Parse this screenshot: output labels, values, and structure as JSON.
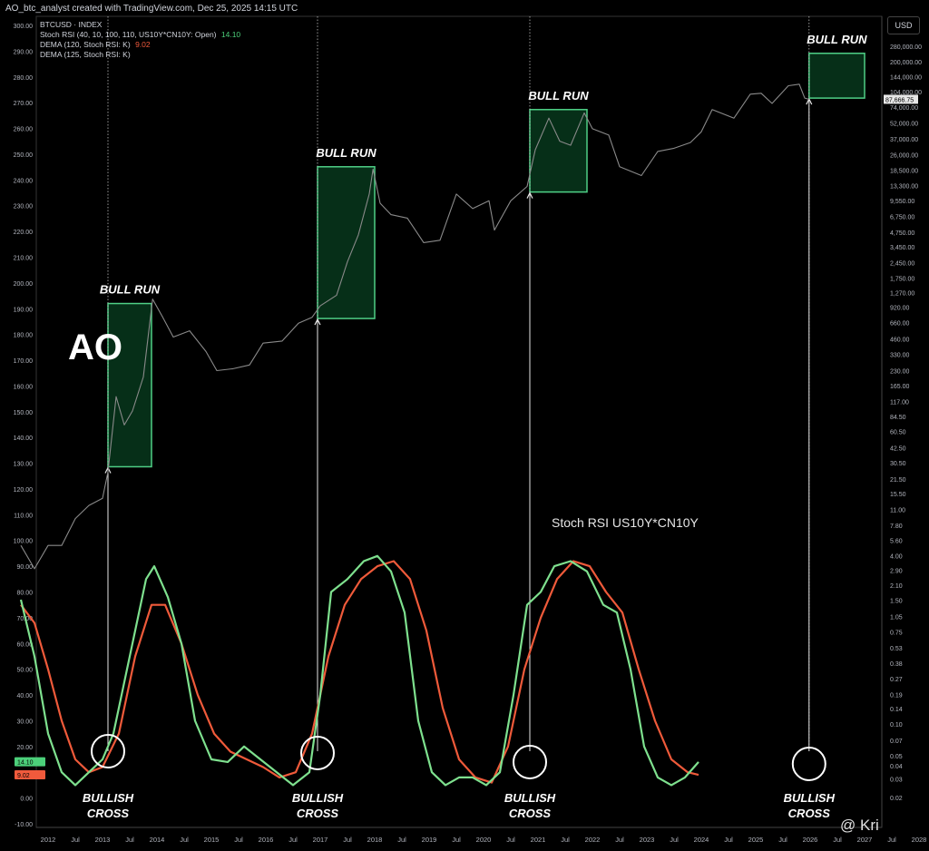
{
  "header": {
    "attribution": "AO_btc_analyst created with TradingView.com, Dec 25, 2025 14:15 UTC"
  },
  "legend": {
    "symbol": "BTCUSD · INDEX",
    "stoch": "Stoch RSI (40, 10, 100, 110, US10Y*CN10Y: Open)",
    "stoch_value": "14.10",
    "dema120": "DEMA (120, Stoch RSI: K)",
    "dema120_value": "9.02",
    "dema125": "DEMA (125, Stoch RSI: K)"
  },
  "currency_button": "USD",
  "watermark": "@ Kri",
  "colors": {
    "background": "#000000",
    "price": "#8a8a8a",
    "stoch_k": "#7ee08e",
    "dema": "#ef5a3a",
    "box_fill": "#062f18",
    "box_stroke": "#4fcf86",
    "vline": "#bdbdbd"
  },
  "chart_data": {
    "type": "line",
    "title": "",
    "annotations": {
      "big_label": "AO",
      "bull_run_label": "BULL RUN",
      "cross_label_1": "BULLISH",
      "cross_label_2": "CROSS",
      "indicator_label": "Stoch RSI US10Y*CN10Y"
    },
    "left_axis_ticks": [
      "300.00",
      "290.00",
      "280.00",
      "270.00",
      "260.00",
      "250.00",
      "240.00",
      "230.00",
      "220.00",
      "210.00",
      "200.00",
      "190.00",
      "180.00",
      "170.00",
      "160.00",
      "150.00",
      "140.00",
      "130.00",
      "120.00",
      "110.00",
      "100.00",
      "90.00",
      "80.00",
      "70.00",
      "60.00",
      "50.00",
      "40.00",
      "30.00",
      "20.00",
      "10.00",
      "0.00",
      "-10.00"
    ],
    "left_axis_range": [
      -10,
      300
    ],
    "right_axis_ticks": [
      "280,000.00",
      "200,000.00",
      "144,000.00",
      "104,000.00",
      "74,000.00",
      "52,000.00",
      "37,000.00",
      "26,000.00",
      "18,500.00",
      "13,300.00",
      "9,550.00",
      "6,750.00",
      "4,750.00",
      "3,450.00",
      "2,450.00",
      "1,750.00",
      "1,270.00",
      "920.00",
      "660.00",
      "460.00",
      "330.00",
      "230.00",
      "165.00",
      "117.00",
      "84.50",
      "60.50",
      "42.50",
      "30.50",
      "21.50",
      "15.50",
      "11.00",
      "7.80",
      "5.60",
      "4.00",
      "2.90",
      "2.10",
      "1.50",
      "1.05",
      "0.75",
      "0.53",
      "0.38",
      "0.27",
      "0.19",
      "0.14",
      "0.10",
      "0.07",
      "0.05",
      "0.04",
      "0.03",
      "0.02"
    ],
    "price_axis_scale": "log",
    "price_label": "87,666.75",
    "x_axis_ticks": [
      "2012",
      "Jul",
      "2013",
      "Jul",
      "2014",
      "Jul",
      "2015",
      "Jul",
      "2016",
      "Jul",
      "2017",
      "Jul",
      "2018",
      "Jul",
      "2019",
      "Jul",
      "2020",
      "Jul",
      "2021",
      "Jul",
      "2022",
      "Jul",
      "2023",
      "Jul",
      "2024",
      "Jul",
      "2025",
      "Jul",
      "2026",
      "Jul",
      "2027",
      "Jul",
      "2028"
    ],
    "current_value_tags": {
      "stoch_k": "14.10",
      "dema": "9.02"
    },
    "series": [
      {
        "name": "BTCUSD",
        "scale": "right_log",
        "points": [
          [
            2011.5,
            5
          ],
          [
            2011.75,
            3
          ],
          [
            2012.0,
            5
          ],
          [
            2012.25,
            5
          ],
          [
            2012.5,
            9
          ],
          [
            2012.75,
            12
          ],
          [
            2013.0,
            14
          ],
          [
            2013.1,
            25
          ],
          [
            2013.25,
            130
          ],
          [
            2013.4,
            70
          ],
          [
            2013.55,
            95
          ],
          [
            2013.75,
            200
          ],
          [
            2013.92,
            1100
          ],
          [
            2014.1,
            750
          ],
          [
            2014.3,
            480
          ],
          [
            2014.6,
            550
          ],
          [
            2014.9,
            350
          ],
          [
            2015.1,
            230
          ],
          [
            2015.4,
            240
          ],
          [
            2015.7,
            260
          ],
          [
            2015.95,
            420
          ],
          [
            2016.3,
            440
          ],
          [
            2016.6,
            650
          ],
          [
            2016.85,
            740
          ],
          [
            2017.0,
            950
          ],
          [
            2017.3,
            1200
          ],
          [
            2017.5,
            2500
          ],
          [
            2017.7,
            4500
          ],
          [
            2017.9,
            11000
          ],
          [
            2017.97,
            19000
          ],
          [
            2018.1,
            9000
          ],
          [
            2018.3,
            7000
          ],
          [
            2018.6,
            6500
          ],
          [
            2018.9,
            3800
          ],
          [
            2019.2,
            4000
          ],
          [
            2019.5,
            11000
          ],
          [
            2019.8,
            8000
          ],
          [
            2020.1,
            9500
          ],
          [
            2020.2,
            5000
          ],
          [
            2020.5,
            9500
          ],
          [
            2020.8,
            13000
          ],
          [
            2020.95,
            29000
          ],
          [
            2021.2,
            58000
          ],
          [
            2021.4,
            35000
          ],
          [
            2021.6,
            32000
          ],
          [
            2021.85,
            65000
          ],
          [
            2022.0,
            46000
          ],
          [
            2022.3,
            40000
          ],
          [
            2022.5,
            20000
          ],
          [
            2022.9,
            16500
          ],
          [
            2023.2,
            28000
          ],
          [
            2023.5,
            30000
          ],
          [
            2023.8,
            34000
          ],
          [
            2024.0,
            43000
          ],
          [
            2024.2,
            70000
          ],
          [
            2024.6,
            58000
          ],
          [
            2024.9,
            98000
          ],
          [
            2025.1,
            100000
          ],
          [
            2025.3,
            80000
          ],
          [
            2025.6,
            118000
          ],
          [
            2025.8,
            122000
          ],
          [
            2025.9,
            90000
          ],
          [
            2025.98,
            87666
          ]
        ]
      },
      {
        "name": "Stoch RSI",
        "scale": "left",
        "points": [
          [
            2011.5,
            77
          ],
          [
            2011.75,
            55
          ],
          [
            2012.0,
            25
          ],
          [
            2012.25,
            10
          ],
          [
            2012.5,
            5
          ],
          [
            2012.75,
            10
          ],
          [
            2013.0,
            15
          ],
          [
            2013.2,
            25
          ],
          [
            2013.5,
            55
          ],
          [
            2013.8,
            85
          ],
          [
            2013.95,
            90
          ],
          [
            2014.2,
            78
          ],
          [
            2014.45,
            60
          ],
          [
            2014.7,
            30
          ],
          [
            2015.0,
            15
          ],
          [
            2015.3,
            14
          ],
          [
            2015.6,
            20
          ],
          [
            2015.9,
            15
          ],
          [
            2016.2,
            10
          ],
          [
            2016.5,
            5
          ],
          [
            2016.8,
            10
          ],
          [
            2017.0,
            40
          ],
          [
            2017.2,
            80
          ],
          [
            2017.5,
            85
          ],
          [
            2017.8,
            92
          ],
          [
            2018.05,
            94
          ],
          [
            2018.3,
            88
          ],
          [
            2018.55,
            72
          ],
          [
            2018.8,
            30
          ],
          [
            2019.05,
            10
          ],
          [
            2019.3,
            5
          ],
          [
            2019.55,
            8
          ],
          [
            2019.8,
            8
          ],
          [
            2020.05,
            5
          ],
          [
            2020.3,
            10
          ],
          [
            2020.55,
            40
          ],
          [
            2020.8,
            75
          ],
          [
            2021.05,
            80
          ],
          [
            2021.3,
            90
          ],
          [
            2021.6,
            92
          ],
          [
            2021.9,
            88
          ],
          [
            2022.2,
            75
          ],
          [
            2022.45,
            72
          ],
          [
            2022.7,
            50
          ],
          [
            2022.95,
            20
          ],
          [
            2023.2,
            8
          ],
          [
            2023.45,
            5
          ],
          [
            2023.7,
            8
          ],
          [
            2023.95,
            14
          ]
        ]
      },
      {
        "name": "DEMA",
        "scale": "left",
        "points": [
          [
            2011.5,
            75
          ],
          [
            2011.75,
            68
          ],
          [
            2012.0,
            50
          ],
          [
            2012.25,
            30
          ],
          [
            2012.5,
            15
          ],
          [
            2012.75,
            10
          ],
          [
            2013.0,
            12
          ],
          [
            2013.3,
            25
          ],
          [
            2013.6,
            55
          ],
          [
            2013.9,
            75
          ],
          [
            2014.15,
            75
          ],
          [
            2014.45,
            60
          ],
          [
            2014.75,
            40
          ],
          [
            2015.05,
            25
          ],
          [
            2015.35,
            18
          ],
          [
            2015.65,
            15
          ],
          [
            2015.95,
            12
          ],
          [
            2016.25,
            8
          ],
          [
            2016.55,
            10
          ],
          [
            2016.85,
            25
          ],
          [
            2017.15,
            55
          ],
          [
            2017.45,
            75
          ],
          [
            2017.75,
            85
          ],
          [
            2018.05,
            90
          ],
          [
            2018.35,
            92
          ],
          [
            2018.65,
            85
          ],
          [
            2018.95,
            65
          ],
          [
            2019.25,
            35
          ],
          [
            2019.55,
            15
          ],
          [
            2019.85,
            8
          ],
          [
            2020.15,
            6
          ],
          [
            2020.45,
            20
          ],
          [
            2020.75,
            50
          ],
          [
            2021.05,
            70
          ],
          [
            2021.35,
            85
          ],
          [
            2021.65,
            92
          ],
          [
            2021.95,
            90
          ],
          [
            2022.25,
            80
          ],
          [
            2022.55,
            72
          ],
          [
            2022.85,
            50
          ],
          [
            2023.15,
            30
          ],
          [
            2023.45,
            15
          ],
          [
            2023.75,
            10
          ],
          [
            2023.95,
            9
          ]
        ]
      }
    ],
    "bull_runs": [
      {
        "label": "BULL RUN",
        "start_date": "2013.1",
        "end_date": "2013.9"
      },
      {
        "label": "BULL RUN",
        "start_date": "2016.95",
        "end_date": "2018.0"
      },
      {
        "label": "BULL RUN",
        "start_date": "2020.85",
        "end_date": "2021.9"
      },
      {
        "label": "BULL RUN",
        "start_date": "2025.98",
        "end_date": "2027.0"
      }
    ]
  }
}
